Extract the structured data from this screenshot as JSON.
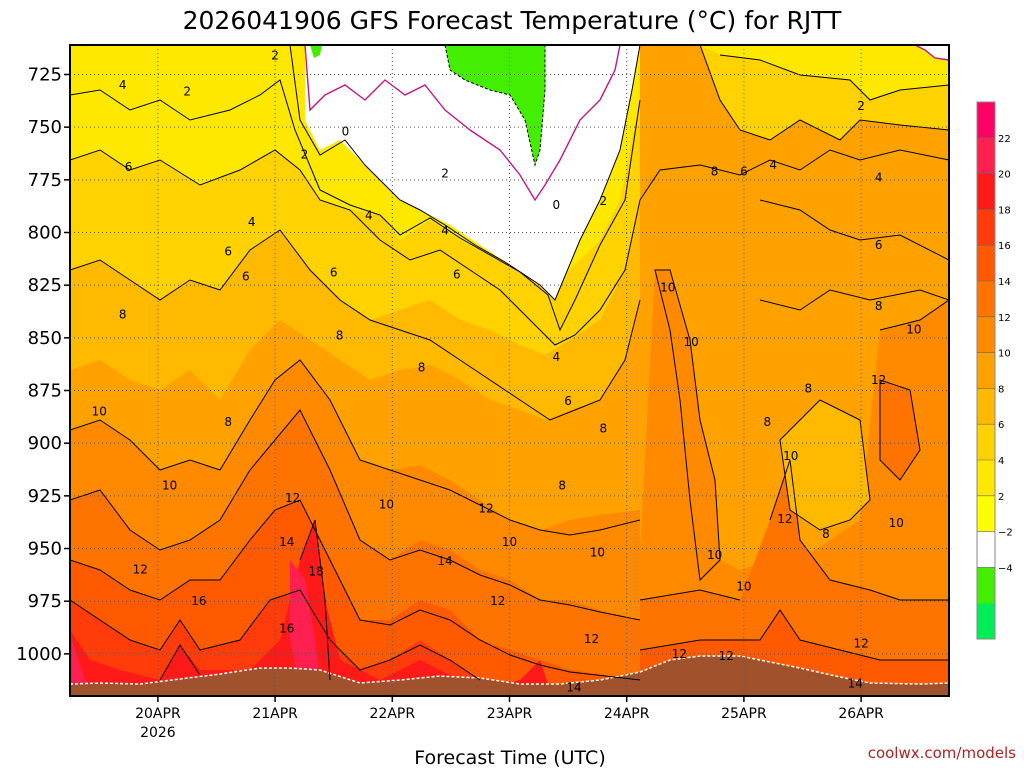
{
  "chart_data": {
    "type": "heatmap",
    "title": "2026041906 GFS Forecast Temperature (°C) for RJTT",
    "xlabel": "Forecast Time (UTC)",
    "credit": "coolwx.com/models",
    "y_ticks": [
      "725",
      "750",
      "775",
      "800",
      "825",
      "850",
      "875",
      "900",
      "925",
      "950",
      "975",
      "1000"
    ],
    "y_range_hpa": [
      711,
      1020
    ],
    "x_range_day": [
      19.25,
      26.75
    ],
    "x_ticks": [
      {
        "label": "20APR",
        "sub": "2026",
        "day": 20
      },
      {
        "label": "21APR",
        "sub": "",
        "day": 21
      },
      {
        "label": "22APR",
        "sub": "",
        "day": 22
      },
      {
        "label": "23APR",
        "sub": "",
        "day": 23
      },
      {
        "label": "24APR",
        "sub": "",
        "day": 24
      },
      {
        "label": "25APR",
        "sub": "",
        "day": 25
      },
      {
        "label": "26APR",
        "sub": "",
        "day": 26
      }
    ],
    "grid": true,
    "legend": "right",
    "colorbar": {
      "labels": [
        "22",
        "20",
        "18",
        "16",
        "14",
        "12",
        "10",
        "8",
        "6",
        "4",
        "2",
        "−2",
        "−4"
      ],
      "colors": [
        "#ff0066",
        "#ff2050",
        "#ff1a1a",
        "#ff3c0a",
        "#ff5a00",
        "#ff7400",
        "#ff8a00",
        "#ffa200",
        "#ffba00",
        "#ffd200",
        "#ffe800",
        "#ffff00",
        "#ffffff",
        "#44ee00",
        "#00ee55"
      ]
    },
    "contour_labels": [
      {
        "t": "4",
        "day": 19.7,
        "p": 730
      },
      {
        "t": "2",
        "day": 20.25,
        "p": 733
      },
      {
        "t": "2",
        "day": 21.0,
        "p": 716
      },
      {
        "t": "0",
        "day": 21.6,
        "p": 752
      },
      {
        "t": "2",
        "day": 21.25,
        "p": 763
      },
      {
        "t": "2",
        "day": 22.45,
        "p": 772
      },
      {
        "t": "0",
        "day": 23.4,
        "p": 787
      },
      {
        "t": "2",
        "day": 23.8,
        "p": 785
      },
      {
        "t": "6",
        "day": 19.75,
        "p": 769
      },
      {
        "t": "4",
        "day": 20.8,
        "p": 795
      },
      {
        "t": "4",
        "day": 21.8,
        "p": 792
      },
      {
        "t": "4",
        "day": 22.45,
        "p": 799
      },
      {
        "t": "6",
        "day": 20.6,
        "p": 809
      },
      {
        "t": "6",
        "day": 20.75,
        "p": 821
      },
      {
        "t": "6",
        "day": 21.5,
        "p": 819
      },
      {
        "t": "6",
        "day": 22.55,
        "p": 820
      },
      {
        "t": "8",
        "day": 19.7,
        "p": 839
      },
      {
        "t": "8",
        "day": 21.55,
        "p": 849
      },
      {
        "t": "8",
        "day": 22.25,
        "p": 864
      },
      {
        "t": "4",
        "day": 23.4,
        "p": 859
      },
      {
        "t": "6",
        "day": 23.5,
        "p": 880
      },
      {
        "t": "8",
        "day": 23.8,
        "p": 893
      },
      {
        "t": "10",
        "day": 19.5,
        "p": 885
      },
      {
        "t": "8",
        "day": 20.6,
        "p": 890
      },
      {
        "t": "10",
        "day": 20.1,
        "p": 920
      },
      {
        "t": "12",
        "day": 21.15,
        "p": 926
      },
      {
        "t": "10",
        "day": 21.95,
        "p": 929
      },
      {
        "t": "12",
        "day": 22.8,
        "p": 931
      },
      {
        "t": "8",
        "day": 23.45,
        "p": 920
      },
      {
        "t": "12",
        "day": 19.85,
        "p": 960
      },
      {
        "t": "14",
        "day": 21.1,
        "p": 947
      },
      {
        "t": "18",
        "day": 21.35,
        "p": 961
      },
      {
        "t": "16",
        "day": 20.35,
        "p": 975
      },
      {
        "t": "16",
        "day": 21.1,
        "p": 988
      },
      {
        "t": "14",
        "day": 22.45,
        "p": 956
      },
      {
        "t": "10",
        "day": 23.0,
        "p": 947
      },
      {
        "t": "12",
        "day": 22.9,
        "p": 975
      },
      {
        "t": "10",
        "day": 23.75,
        "p": 952
      },
      {
        "t": "12",
        "day": 23.7,
        "p": 993
      },
      {
        "t": "14",
        "day": 23.55,
        "p": 1016
      },
      {
        "t": "10",
        "day": 24.35,
        "p": 826
      },
      {
        "t": "10",
        "day": 24.55,
        "p": 852
      },
      {
        "t": "8",
        "day": 24.75,
        "p": 771
      },
      {
        "t": "6",
        "day": 25.0,
        "p": 771
      },
      {
        "t": "4",
        "day": 25.25,
        "p": 768
      },
      {
        "t": "2",
        "day": 26.0,
        "p": 740
      },
      {
        "t": "4",
        "day": 26.15,
        "p": 774
      },
      {
        "t": "6",
        "day": 26.15,
        "p": 806
      },
      {
        "t": "8",
        "day": 26.15,
        "p": 835
      },
      {
        "t": "10",
        "day": 26.45,
        "p": 846
      },
      {
        "t": "12",
        "day": 26.15,
        "p": 870
      },
      {
        "t": "8",
        "day": 25.55,
        "p": 874
      },
      {
        "t": "8",
        "day": 25.2,
        "p": 890
      },
      {
        "t": "10",
        "day": 25.4,
        "p": 906
      },
      {
        "t": "12",
        "day": 25.35,
        "p": 936
      },
      {
        "t": "8",
        "day": 25.7,
        "p": 943
      },
      {
        "t": "10",
        "day": 26.3,
        "p": 938
      },
      {
        "t": "10",
        "day": 24.75,
        "p": 953
      },
      {
        "t": "10",
        "day": 25.0,
        "p": 968
      },
      {
        "t": "12",
        "day": 24.45,
        "p": 1000
      },
      {
        "t": "12",
        "day": 24.85,
        "p": 1001
      },
      {
        "t": "12",
        "day": 26.0,
        "p": 995
      },
      {
        "t": "14",
        "day": 25.95,
        "p": 1014
      }
    ]
  }
}
